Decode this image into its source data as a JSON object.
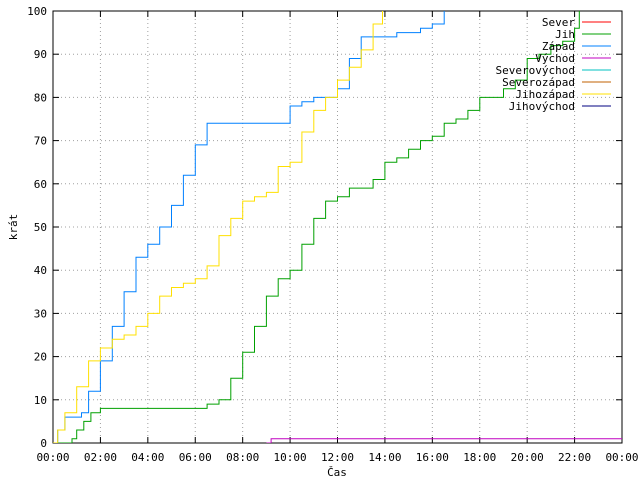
{
  "chart_data": {
    "type": "line",
    "title": "",
    "xlabel": "Čas",
    "ylabel": "krát",
    "ylim": [
      0,
      100
    ],
    "yticks": [
      0,
      10,
      20,
      30,
      40,
      50,
      60,
      70,
      80,
      90,
      100
    ],
    "xlim": [
      0,
      24
    ],
    "xtick_labels": [
      "00:00",
      "02:00",
      "04:00",
      "06:00",
      "08:00",
      "10:00",
      "12:00",
      "14:00",
      "16:00",
      "18:00",
      "20:00",
      "22:00",
      "00:00"
    ],
    "grid": true,
    "legend_position": "top-right",
    "series": [
      {
        "name": "Sever",
        "color": "#ff0000",
        "x": [],
        "y": []
      },
      {
        "name": "Jih",
        "color": "#00a000",
        "x": [
          0.0,
          0.8,
          1.0,
          1.3,
          1.6,
          2.0,
          5.0,
          6.5,
          7.0,
          7.5,
          8.0,
          8.5,
          9.0,
          9.5,
          10.0,
          10.5,
          11.0,
          11.5,
          12.0,
          12.5,
          13.0,
          13.5,
          14.0,
          14.5,
          15.0,
          15.5,
          16.0,
          16.5,
          17.0,
          17.5,
          18.0,
          18.5,
          19.0,
          19.5,
          20.0,
          20.5,
          21.0,
          21.5,
          22.0,
          22.2
        ],
        "y": [
          0,
          1,
          3,
          5,
          7,
          8,
          8,
          9,
          10,
          15,
          21,
          27,
          34,
          38,
          40,
          46,
          52,
          56,
          57,
          59,
          59,
          61,
          65,
          66,
          68,
          70,
          71,
          74,
          75,
          77,
          80,
          80,
          82,
          84,
          89,
          90,
          92,
          93,
          96,
          100
        ]
      },
      {
        "name": "Západ",
        "color": "#0080ff",
        "x": [
          0.0,
          0.2,
          0.5,
          1.2,
          1.5,
          2.0,
          2.5,
          3.0,
          3.5,
          4.0,
          4.5,
          5.0,
          5.5,
          6.0,
          6.5,
          7.0,
          7.5,
          8.0,
          9.5,
          10.0,
          10.5,
          11.0,
          11.5,
          12.0,
          12.5,
          13.0,
          13.5,
          14.0,
          14.5,
          15.0,
          15.5,
          16.0,
          16.5
        ],
        "y": [
          0,
          3,
          6,
          7,
          12,
          19,
          27,
          35,
          43,
          46,
          50,
          55,
          62,
          69,
          74,
          74,
          74,
          74,
          74,
          78,
          79,
          80,
          80,
          82,
          89,
          94,
          94,
          94,
          95,
          95,
          96,
          97,
          100
        ]
      },
      {
        "name": "Východ",
        "color": "#c000c0",
        "x": [
          9.0,
          9.2,
          24.0
        ],
        "y": [
          0,
          1,
          1
        ]
      },
      {
        "name": "Severovýchod",
        "color": "#00c0c0",
        "x": [],
        "y": []
      },
      {
        "name": "Severozápad",
        "color": "#c06000",
        "x": [],
        "y": []
      },
      {
        "name": "Jihozápad",
        "color": "#ffe000",
        "x": [
          0.0,
          0.2,
          0.5,
          1.0,
          1.5,
          2.0,
          2.5,
          3.0,
          3.5,
          4.0,
          4.5,
          5.0,
          5.5,
          6.0,
          6.5,
          7.0,
          7.5,
          8.0,
          8.5,
          9.0,
          9.5,
          10.0,
          10.5,
          11.0,
          11.5,
          12.0,
          12.5,
          13.0,
          13.5,
          13.9
        ],
        "y": [
          0,
          3,
          7,
          13,
          19,
          22,
          24,
          25,
          27,
          30,
          34,
          36,
          37,
          38,
          41,
          48,
          52,
          56,
          57,
          58,
          64,
          65,
          72,
          77,
          80,
          84,
          87,
          91,
          97,
          100
        ]
      },
      {
        "name": "Jihovýchod",
        "color": "#000080",
        "x": [],
        "y": []
      }
    ]
  }
}
